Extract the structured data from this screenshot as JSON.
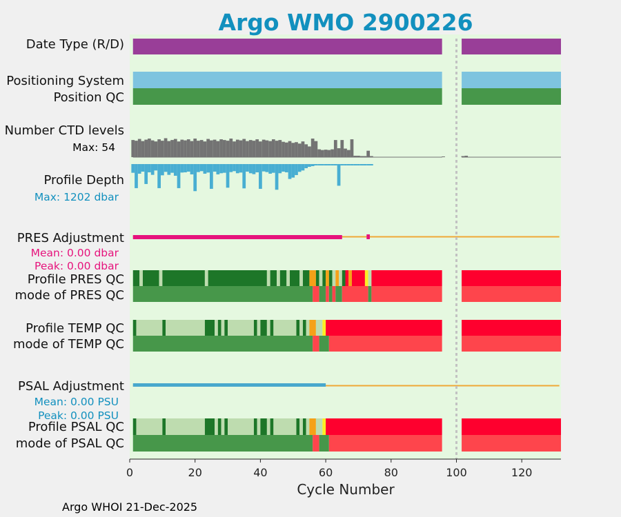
{
  "chart_data": {
    "type": "float-status-timeline",
    "title": "Argo WMO 2900226",
    "xlabel": "Cycle Number",
    "xlim": [
      0,
      132
    ],
    "xticks": [
      0,
      20,
      40,
      60,
      80,
      100,
      120
    ],
    "gap_marker_cycle": 100,
    "footer": "Argo WHOI 21-Dec-2025",
    "row_labels": {
      "date_type": "Date Type (R/D)",
      "positioning": "Positioning System",
      "position_qc": "Position QC",
      "ctd_levels": "Number CTD levels",
      "ctd_max": "Max: 54",
      "profile_depth": "Profile Depth",
      "depth_max": "Max: 1202 dbar",
      "pres_adj": "PRES Adjustment",
      "pres_mean": "Mean: 0.00 dbar",
      "pres_peak": "Peak: 0.00 dbar",
      "pres_qc": "Profile PRES QC",
      "pres_mode": "mode of PRES QC",
      "temp_qc": "Profile TEMP QC",
      "temp_mode": "mode of TEMP QC",
      "psal_adj": "PSAL Adjustment",
      "psal_mean": "Mean: 0.00 PSU",
      "psal_peak": "Peak: 0.00 PSU",
      "psal_qc": "Profile PSAL QC",
      "psal_mode": "mode of PSAL QC"
    },
    "colors": {
      "title": "#1290be",
      "background": "#e5f8e0",
      "date_type": "#993e98",
      "positioning": "#7ec4df",
      "qc_good": "#47974a",
      "qc_A": "#1d7628",
      "qc_B": "#bedcaf",
      "qc_C": "#f5a118",
      "qc_D": "#fced24",
      "qc_F": "#fe002e",
      "mode_bad": "#fe454c",
      "ctd": "#737373",
      "depth": "#48aed2",
      "depth_label": "#1290be",
      "pres_adj": "#e6137c",
      "adj_line": "#f0a836",
      "psal_adj": "#48a8cd",
      "psal_label": "#1290be",
      "gap_line": "#c2c2c2"
    },
    "data_segments": [
      [
        1,
        95.6
      ],
      [
        101.6,
        132
      ]
    ],
    "position_qc": "1 (good) for all cycles",
    "ctd_levels_max": 54,
    "ctd_levels_by_cycle": [
      [
        1,
        48
      ],
      [
        2,
        46
      ],
      [
        3,
        51
      ],
      [
        4,
        45
      ],
      [
        5,
        49
      ],
      [
        6,
        52
      ],
      [
        7,
        47
      ],
      [
        8,
        44
      ],
      [
        9,
        50
      ],
      [
        10,
        46
      ],
      [
        11,
        53
      ],
      [
        12,
        45
      ],
      [
        13,
        48
      ],
      [
        14,
        51
      ],
      [
        15,
        44
      ],
      [
        16,
        49
      ],
      [
        17,
        47
      ],
      [
        18,
        50
      ],
      [
        19,
        45
      ],
      [
        20,
        52
      ],
      [
        21,
        46
      ],
      [
        22,
        48
      ],
      [
        23,
        44
      ],
      [
        24,
        51
      ],
      [
        25,
        47
      ],
      [
        26,
        49
      ],
      [
        27,
        45
      ],
      [
        28,
        50
      ],
      [
        29,
        48
      ],
      [
        30,
        46
      ],
      [
        31,
        52
      ],
      [
        32,
        44
      ],
      [
        33,
        49
      ],
      [
        34,
        47
      ],
      [
        35,
        51
      ],
      [
        36,
        45
      ],
      [
        37,
        48
      ],
      [
        38,
        46
      ],
      [
        39,
        50
      ],
      [
        40,
        44
      ],
      [
        41,
        49
      ],
      [
        42,
        47
      ],
      [
        43,
        45
      ],
      [
        44,
        50
      ],
      [
        45,
        46
      ],
      [
        46,
        48
      ],
      [
        47,
        43
      ],
      [
        48,
        41
      ],
      [
        49,
        45
      ],
      [
        50,
        40
      ],
      [
        51,
        42
      ],
      [
        52,
        38
      ],
      [
        53,
        44
      ],
      [
        54,
        36
      ],
      [
        55,
        30
      ],
      [
        56,
        52
      ],
      [
        57,
        45
      ],
      [
        58,
        22
      ],
      [
        59,
        20
      ],
      [
        60,
        21
      ],
      [
        61,
        20
      ],
      [
        62,
        22
      ],
      [
        63,
        48
      ],
      [
        64,
        25
      ],
      [
        65,
        48
      ],
      [
        66,
        24
      ],
      [
        67,
        20
      ],
      [
        68,
        50
      ],
      [
        69,
        4
      ],
      [
        70,
        4
      ],
      [
        71,
        3
      ],
      [
        72,
        3
      ],
      [
        73,
        18
      ],
      [
        74,
        3
      ],
      [
        96,
        2
      ],
      [
        102,
        3
      ],
      [
        103,
        4
      ]
    ],
    "profile_depth_max_dbar": 1202,
    "profile_depth_by_cycle": [
      [
        1,
        380
      ],
      [
        2,
        1050
      ],
      [
        3,
        420
      ],
      [
        4,
        330
      ],
      [
        5,
        870
      ],
      [
        6,
        360
      ],
      [
        7,
        470
      ],
      [
        8,
        280
      ],
      [
        9,
        1050
      ],
      [
        10,
        490
      ],
      [
        11,
        340
      ],
      [
        12,
        470
      ],
      [
        13,
        380
      ],
      [
        14,
        510
      ],
      [
        15,
        1050
      ],
      [
        16,
        370
      ],
      [
        17,
        360
      ],
      [
        18,
        330
      ],
      [
        19,
        450
      ],
      [
        20,
        1180
      ],
      [
        21,
        350
      ],
      [
        22,
        310
      ],
      [
        23,
        420
      ],
      [
        24,
        370
      ],
      [
        25,
        1080
      ],
      [
        26,
        330
      ],
      [
        27,
        450
      ],
      [
        28,
        400
      ],
      [
        29,
        380
      ],
      [
        30,
        1030
      ],
      [
        31,
        350
      ],
      [
        32,
        310
      ],
      [
        33,
        400
      ],
      [
        34,
        370
      ],
      [
        35,
        1060
      ],
      [
        36,
        330
      ],
      [
        37,
        400
      ],
      [
        38,
        440
      ],
      [
        39,
        360
      ],
      [
        40,
        1080
      ],
      [
        41,
        320
      ],
      [
        42,
        350
      ],
      [
        43,
        420
      ],
      [
        44,
        380
      ],
      [
        45,
        1120
      ],
      [
        46,
        400
      ],
      [
        47,
        330
      ],
      [
        48,
        360
      ],
      [
        49,
        650
      ],
      [
        50,
        590
      ],
      [
        51,
        480
      ],
      [
        52,
        340
      ],
      [
        53,
        280
      ],
      [
        54,
        180
      ],
      [
        55,
        120
      ],
      [
        56,
        90
      ],
      [
        57,
        60
      ],
      [
        58,
        50
      ],
      [
        59,
        40
      ],
      [
        60,
        45
      ],
      [
        61,
        40
      ],
      [
        62,
        35
      ],
      [
        63,
        50
      ],
      [
        64,
        945
      ],
      [
        65,
        45
      ],
      [
        66,
        30
      ],
      [
        67,
        25
      ],
      [
        68,
        40
      ],
      [
        69,
        20
      ],
      [
        70,
        25
      ],
      [
        71,
        15
      ],
      [
        72,
        20
      ],
      [
        73,
        30
      ],
      [
        74,
        15
      ]
    ],
    "pres_adjustment": {
      "mean_dbar": 0.0,
      "peak_dbar": 0.0,
      "thick_through_cycle": 65,
      "marker_cycle": 73,
      "thin_line_through_cycle": 131.5
    },
    "psal_adjustment": {
      "mean_psu": 0.0,
      "peak_psu": 0.0,
      "thick_through_cycle": 60,
      "thin_line_through_cycle": 131.5
    },
    "profile_qc_codes": "A = all levels good (dark green), B = mostly good (light green), C = orange, D = yellow, F = none good (red)",
    "profile_pres_qc": [
      [
        1,
        3,
        "A"
      ],
      [
        3,
        4,
        "B"
      ],
      [
        4,
        9,
        "A"
      ],
      [
        9,
        10,
        "B"
      ],
      [
        10,
        23,
        "A"
      ],
      [
        23,
        24,
        "B"
      ],
      [
        24,
        42,
        "A"
      ],
      [
        42,
        43,
        "B"
      ],
      [
        43,
        45,
        "A"
      ],
      [
        45,
        46,
        "B"
      ],
      [
        46,
        48,
        "A"
      ],
      [
        48,
        49,
        "B"
      ],
      [
        49,
        52,
        "A"
      ],
      [
        52,
        53,
        "B"
      ],
      [
        53,
        55,
        "A"
      ],
      [
        55,
        57,
        "C"
      ],
      [
        57,
        58,
        "A"
      ],
      [
        58,
        59,
        "B"
      ],
      [
        59,
        60,
        "A"
      ],
      [
        60,
        61,
        "C"
      ],
      [
        61,
        62,
        "A"
      ],
      [
        62,
        63,
        "B"
      ],
      [
        63,
        64,
        "C"
      ],
      [
        64,
        65,
        "B"
      ],
      [
        65,
        66,
        "A"
      ],
      [
        66,
        67,
        "F"
      ],
      [
        67,
        68,
        "C"
      ],
      [
        68,
        72,
        "F"
      ],
      [
        72,
        73,
        "D"
      ],
      [
        73,
        74,
        "B"
      ],
      [
        74,
        95.6,
        "F"
      ],
      [
        101.6,
        132,
        "F"
      ]
    ],
    "mode_pres_qc": [
      [
        1,
        56,
        "good"
      ],
      [
        56,
        58,
        "bad"
      ],
      [
        58,
        60,
        "good"
      ],
      [
        60,
        61,
        "bad"
      ],
      [
        61,
        62,
        "good"
      ],
      [
        62,
        63,
        "bad"
      ],
      [
        63,
        65,
        "good"
      ],
      [
        65,
        73,
        "bad"
      ],
      [
        73,
        74,
        "good"
      ],
      [
        74,
        95.6,
        "bad"
      ],
      [
        101.6,
        132,
        "bad"
      ]
    ],
    "profile_temp_qc": [
      [
        1,
        2,
        "A"
      ],
      [
        2,
        10,
        "B"
      ],
      [
        10,
        11,
        "A"
      ],
      [
        11,
        23,
        "B"
      ],
      [
        23,
        26,
        "A"
      ],
      [
        26,
        27,
        "B"
      ],
      [
        27,
        28,
        "A"
      ],
      [
        28,
        29,
        "B"
      ],
      [
        29,
        30,
        "A"
      ],
      [
        30,
        38,
        "B"
      ],
      [
        38,
        39,
        "A"
      ],
      [
        39,
        40,
        "B"
      ],
      [
        40,
        42,
        "A"
      ],
      [
        42,
        43,
        "B"
      ],
      [
        43,
        44,
        "A"
      ],
      [
        44,
        51,
        "B"
      ],
      [
        51,
        52,
        "A"
      ],
      [
        52,
        53,
        "B"
      ],
      [
        53,
        54,
        "A"
      ],
      [
        54,
        55,
        "B"
      ],
      [
        55,
        57,
        "C"
      ],
      [
        57,
        59,
        "B"
      ],
      [
        59,
        60,
        "D"
      ],
      [
        60,
        95.6,
        "F"
      ],
      [
        101.6,
        132,
        "F"
      ]
    ],
    "mode_temp_qc": [
      [
        1,
        56,
        "good"
      ],
      [
        56,
        58,
        "bad"
      ],
      [
        58,
        61,
        "good"
      ],
      [
        61,
        95.6,
        "bad"
      ],
      [
        101.6,
        132,
        "bad"
      ]
    ],
    "profile_psal_qc": [
      [
        1,
        2,
        "A"
      ],
      [
        2,
        10,
        "B"
      ],
      [
        10,
        11,
        "A"
      ],
      [
        11,
        23,
        "B"
      ],
      [
        23,
        26,
        "A"
      ],
      [
        26,
        27,
        "B"
      ],
      [
        27,
        28,
        "A"
      ],
      [
        28,
        29,
        "B"
      ],
      [
        29,
        30,
        "A"
      ],
      [
        30,
        38,
        "B"
      ],
      [
        38,
        39,
        "A"
      ],
      [
        39,
        40,
        "B"
      ],
      [
        40,
        42,
        "A"
      ],
      [
        42,
        43,
        "B"
      ],
      [
        43,
        44,
        "A"
      ],
      [
        44,
        51,
        "B"
      ],
      [
        51,
        52,
        "A"
      ],
      [
        52,
        53,
        "B"
      ],
      [
        53,
        54,
        "A"
      ],
      [
        54,
        55,
        "B"
      ],
      [
        55,
        57,
        "C"
      ],
      [
        57,
        59,
        "B"
      ],
      [
        59,
        60,
        "D"
      ],
      [
        60,
        95.6,
        "F"
      ],
      [
        101.6,
        132,
        "F"
      ]
    ],
    "mode_psal_qc": [
      [
        1,
        56,
        "good"
      ],
      [
        56,
        58,
        "bad"
      ],
      [
        58,
        61,
        "good"
      ],
      [
        61,
        95.6,
        "bad"
      ],
      [
        101.6,
        132,
        "bad"
      ]
    ]
  }
}
